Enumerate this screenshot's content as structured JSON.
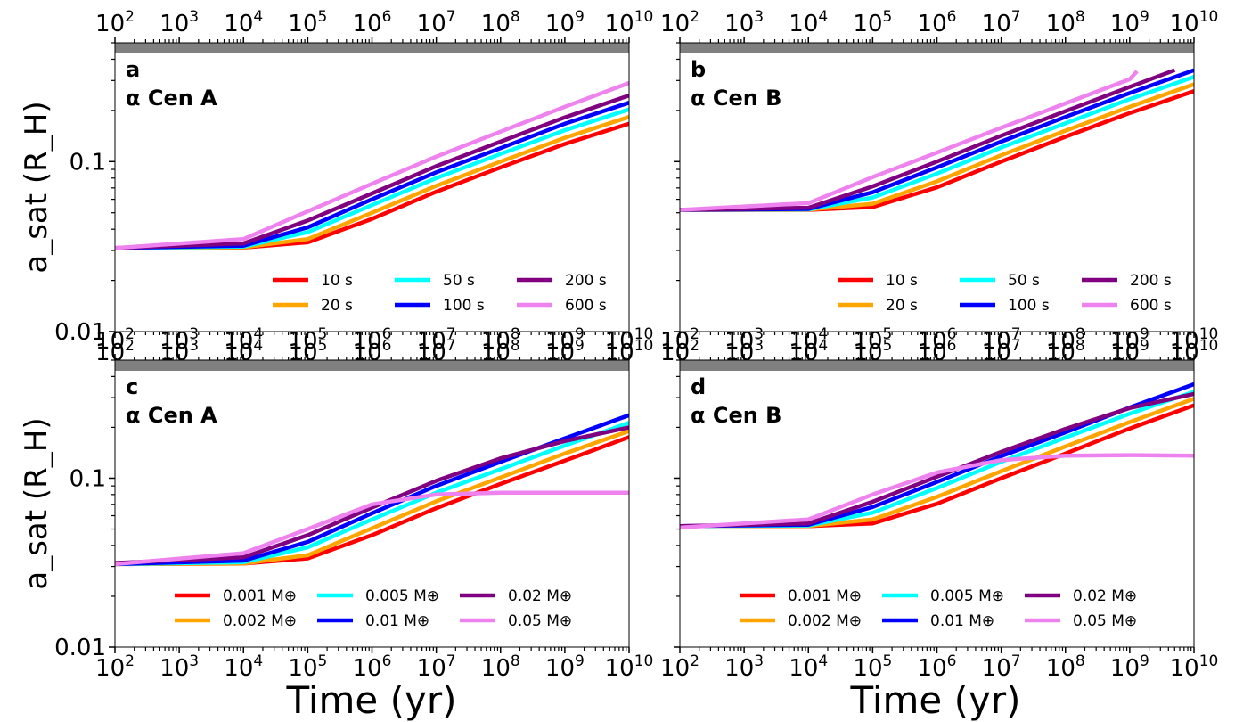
{
  "figure": {
    "xlabel": "Time (yr)",
    "ylabel": "a_sat (R_H)"
  },
  "chart_data": [
    {
      "type": "line",
      "panel_label": "a",
      "star_label": "α Cen A",
      "x_scale": "log",
      "y_scale": "log",
      "xlim": [
        100,
        10000000000
      ],
      "ylim": [
        0.01,
        0.5
      ],
      "x_tick_values": [
        100,
        1000,
        10000,
        100000,
        1000000,
        10000000,
        100000000,
        1000000000,
        10000000000
      ],
      "y_tick_labels": [
        "0.1",
        "0.01"
      ],
      "legend_location": "lower-right",
      "legend_columns": 3,
      "gray_band": true,
      "series": [
        {
          "name": "10 s",
          "color": "#ff0000",
          "x": [
            100,
            10000,
            100000,
            1000000,
            10000000,
            100000000,
            1000000000,
            10000000000
          ],
          "y": [
            0.031,
            0.0312,
            0.0335,
            0.046,
            0.0665,
            0.0925,
            0.127,
            0.167
          ]
        },
        {
          "name": "20 s",
          "color": "#ffa500",
          "x": [
            100,
            10000,
            100000,
            1000000,
            10000000,
            100000000,
            1000000000,
            10000000000
          ],
          "y": [
            0.031,
            0.0313,
            0.035,
            0.05,
            0.072,
            0.1,
            0.138,
            0.183
          ]
        },
        {
          "name": "50 s",
          "color": "#00ffff",
          "x": [
            100,
            10000,
            100000,
            1000000,
            10000000,
            100000000,
            1000000000,
            10000000000
          ],
          "y": [
            0.031,
            0.0316,
            0.0385,
            0.0555,
            0.08,
            0.111,
            0.153,
            0.203
          ]
        },
        {
          "name": "100 s",
          "color": "#0000ff",
          "x": [
            100,
            10000,
            100000,
            1000000,
            10000000,
            100000000,
            1000000000,
            10000000000
          ],
          "y": [
            0.031,
            0.032,
            0.041,
            0.06,
            0.0865,
            0.12,
            0.167,
            0.222
          ]
        },
        {
          "name": "200 s",
          "color": "#800080",
          "x": [
            100,
            10000,
            100000,
            1000000,
            10000000,
            100000000,
            1000000000,
            10000000000
          ],
          "y": [
            0.031,
            0.033,
            0.045,
            0.065,
            0.094,
            0.131,
            0.182,
            0.245
          ]
        },
        {
          "name": "600 s",
          "color": "#ee82ee",
          "x": [
            100,
            10000,
            100000,
            1000000,
            10000000,
            100000000,
            1000000000,
            10000000000
          ],
          "y": [
            0.031,
            0.035,
            0.051,
            0.074,
            0.107,
            0.15,
            0.21,
            0.29
          ]
        }
      ]
    },
    {
      "type": "line",
      "panel_label": "b",
      "star_label": "α Cen B",
      "x_scale": "log",
      "y_scale": "log",
      "xlim": [
        100,
        10000000000
      ],
      "ylim": [
        0.01,
        0.5
      ],
      "x_tick_values": [
        100,
        1000,
        10000,
        100000,
        1000000,
        10000000,
        100000000,
        1000000000,
        10000000000
      ],
      "y_tick_labels": [
        "0.1",
        "0.01"
      ],
      "legend_location": "lower-right",
      "legend_columns": 3,
      "gray_band": true,
      "series": [
        {
          "name": "10 s",
          "color": "#ff0000",
          "x": [
            100,
            10000,
            100000,
            1000000,
            10000000,
            100000000,
            1000000000,
            10000000000
          ],
          "y": [
            0.052,
            0.052,
            0.054,
            0.0705,
            0.1,
            0.14,
            0.193,
            0.26
          ]
        },
        {
          "name": "20 s",
          "color": "#ffa500",
          "x": [
            100,
            10000,
            100000,
            1000000,
            10000000,
            100000000,
            1000000000,
            10000000000
          ],
          "y": [
            0.052,
            0.0521,
            0.0565,
            0.0765,
            0.109,
            0.152,
            0.21,
            0.285
          ]
        },
        {
          "name": "50 s",
          "color": "#00ffff",
          "x": [
            100,
            10000,
            100000,
            1000000,
            10000000,
            100000000,
            1000000000,
            10000000000
          ],
          "y": [
            0.052,
            0.0523,
            0.0615,
            0.085,
            0.121,
            0.168,
            0.233,
            0.315
          ]
        },
        {
          "name": "100 s",
          "color": "#0000ff",
          "x": [
            100,
            10000,
            100000,
            1000000,
            10000000,
            100000000,
            1000000000,
            10000000000
          ],
          "y": [
            0.052,
            0.0526,
            0.066,
            0.0925,
            0.131,
            0.183,
            0.253,
            0.345
          ]
        },
        {
          "name": "200 s",
          "color": "#800080",
          "x": [
            100,
            10000,
            100000,
            1000000,
            10000000,
            100000000,
            1000000000,
            5000000000
          ],
          "y": [
            0.052,
            0.0535,
            0.0715,
            0.1,
            0.142,
            0.198,
            0.275,
            0.345
          ]
        },
        {
          "name": "600 s",
          "color": "#ee82ee",
          "x": [
            100,
            10000,
            100000,
            1000000,
            10000000,
            100000000,
            1000000000,
            1300000000
          ],
          "y": [
            0.052,
            0.057,
            0.081,
            0.113,
            0.158,
            0.22,
            0.305,
            0.34
          ]
        }
      ]
    },
    {
      "type": "line",
      "panel_label": "c",
      "star_label": "α Cen A",
      "x_scale": "log",
      "y_scale": "log",
      "xlim": [
        100,
        10000000000
      ],
      "ylim": [
        0.01,
        0.5
      ],
      "x_tick_values": [
        100,
        1000,
        10000,
        100000,
        1000000,
        10000000,
        100000000,
        1000000000,
        10000000000
      ],
      "y_tick_labels": [
        "0.1",
        "0.01"
      ],
      "legend_location": "lower-right",
      "legend_columns": 3,
      "gray_band": true,
      "series": [
        {
          "name": "0.001 M⊕",
          "color": "#ff0000",
          "x": [
            100,
            10000,
            100000,
            1000000,
            10000000,
            100000000,
            1000000000,
            10000000000
          ],
          "y": [
            0.031,
            0.0312,
            0.0335,
            0.046,
            0.0665,
            0.0925,
            0.127,
            0.175
          ]
        },
        {
          "name": "0.002 M⊕",
          "color": "#ffa500",
          "x": [
            100,
            10000,
            100000,
            1000000,
            10000000,
            100000000,
            1000000000,
            10000000000
          ],
          "y": [
            0.031,
            0.0313,
            0.035,
            0.0505,
            0.073,
            0.101,
            0.14,
            0.19
          ]
        },
        {
          "name": "0.005 M⊕",
          "color": "#00ffff",
          "x": [
            100,
            10000,
            100000,
            1000000,
            10000000,
            100000000,
            1000000000,
            10000000000
          ],
          "y": [
            0.031,
            0.0318,
            0.039,
            0.057,
            0.082,
            0.113,
            0.156,
            0.213
          ]
        },
        {
          "name": "0.01 M⊕",
          "color": "#0000ff",
          "x": [
            100,
            10000,
            100000,
            1000000,
            10000000,
            100000000,
            1000000000,
            10000000000
          ],
          "y": [
            0.031,
            0.0325,
            0.042,
            0.062,
            0.09,
            0.125,
            0.172,
            0.236
          ]
        },
        {
          "name": "0.02 M⊕",
          "color": "#800080",
          "x": [
            100,
            10000,
            100000,
            1000000,
            10000000,
            100000000,
            1000000000,
            10000000000
          ],
          "y": [
            0.0315,
            0.034,
            0.046,
            0.067,
            0.0965,
            0.131,
            0.166,
            0.2
          ]
        },
        {
          "name": "0.05 M⊕",
          "color": "#ee82ee",
          "x": [
            100,
            10000,
            100000,
            1000000,
            10000000,
            100000000,
            1000000000,
            10000000000
          ],
          "y": [
            0.031,
            0.036,
            0.05,
            0.07,
            0.08,
            0.082,
            0.082,
            0.082
          ]
        }
      ]
    },
    {
      "type": "line",
      "panel_label": "d",
      "star_label": "α Cen B",
      "x_scale": "log",
      "y_scale": "log",
      "xlim": [
        100,
        10000000000
      ],
      "ylim": [
        0.01,
        0.5
      ],
      "x_tick_values": [
        100,
        1000,
        10000,
        100000,
        1000000,
        10000000,
        100000000,
        1000000000,
        10000000000
      ],
      "y_tick_labels": [
        "0.1",
        "0.01"
      ],
      "legend_location": "lower-right",
      "legend_columns": 3,
      "gray_band": true,
      "series": [
        {
          "name": "0.001 M⊕",
          "color": "#ff0000",
          "x": [
            100,
            10000,
            100000,
            1000000,
            10000000,
            100000000,
            1000000000,
            10000000000
          ],
          "y": [
            0.052,
            0.052,
            0.054,
            0.0705,
            0.1,
            0.14,
            0.197,
            0.27
          ]
        },
        {
          "name": "0.002 M⊕",
          "color": "#ffa500",
          "x": [
            100,
            10000,
            100000,
            1000000,
            10000000,
            100000000,
            1000000000,
            10000000000
          ],
          "y": [
            0.052,
            0.0521,
            0.057,
            0.0775,
            0.11,
            0.154,
            0.215,
            0.295
          ]
        },
        {
          "name": "0.005 M⊕",
          "color": "#00ffff",
          "x": [
            100,
            10000,
            100000,
            1000000,
            10000000,
            100000000,
            1000000000,
            10000000000
          ],
          "y": [
            0.052,
            0.0525,
            0.0625,
            0.0875,
            0.125,
            0.174,
            0.241,
            0.325
          ]
        },
        {
          "name": "0.01 M⊕",
          "color": "#0000ff",
          "x": [
            100,
            10000,
            100000,
            1000000,
            10000000,
            100000000,
            1000000000,
            10000000000
          ],
          "y": [
            0.052,
            0.053,
            0.0675,
            0.095,
            0.135,
            0.187,
            0.262,
            0.36
          ]
        },
        {
          "name": "0.02 M⊕",
          "color": "#800080",
          "x": [
            100,
            10000,
            100000,
            1000000,
            10000000,
            100000000,
            1000000000,
            10000000000
          ],
          "y": [
            0.052,
            0.054,
            0.0725,
            0.102,
            0.143,
            0.196,
            0.26,
            0.315
          ]
        },
        {
          "name": "0.05 M⊕",
          "color": "#ee82ee",
          "x": [
            100,
            10000,
            100000,
            1000000,
            10000000,
            100000000,
            1000000000,
            10000000000
          ],
          "y": [
            0.051,
            0.057,
            0.08,
            0.108,
            0.128,
            0.136,
            0.137,
            0.136
          ]
        }
      ]
    }
  ]
}
